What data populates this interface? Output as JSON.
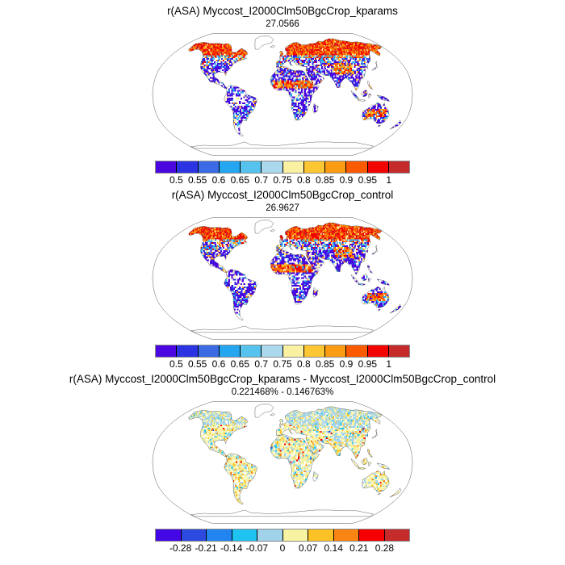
{
  "figure": {
    "background": "#ffffff"
  },
  "panels": [
    {
      "title": "r(ASA) Myccost_I2000Clm50BgcCrop_kparams",
      "subtitle": "27.0566",
      "colorbar": {
        "labels": [
          "0.5",
          "0.55",
          "0.6",
          "0.65",
          "0.7",
          "0.75",
          "0.8",
          "0.85",
          "0.9",
          "0.95",
          "1"
        ],
        "colors": [
          "#4a07e0",
          "#2c33e3",
          "#3a6be5",
          "#25a6f0",
          "#55c3ee",
          "#abd8ec",
          "#faf0a2",
          "#fcc733",
          "#fb9c12",
          "#fa5a00",
          "#f20400",
          "#c62b2b"
        ]
      }
    },
    {
      "title": "r(ASA) Myccost_I2000Clm50BgcCrop_control",
      "subtitle": "26.9627",
      "colorbar": {
        "labels": [
          "0.5",
          "0.55",
          "0.6",
          "0.65",
          "0.7",
          "0.75",
          "0.8",
          "0.85",
          "0.9",
          "0.95",
          "1"
        ],
        "colors": [
          "#4a07e0",
          "#2c33e3",
          "#3a6be5",
          "#25a6f0",
          "#55c3ee",
          "#abd8ec",
          "#faf0a2",
          "#fcc733",
          "#fb9c12",
          "#fa5a00",
          "#f20400",
          "#c62b2b"
        ]
      }
    },
    {
      "title": "r(ASA) Myccost_I2000Clm50BgcCrop_kparams - Myccost_I2000Clm50BgcCrop_control",
      "subtitle": "0.221468% - 0.146763%",
      "colorbar": {
        "labels": [
          "-0.28",
          "-0.21",
          "-0.14",
          "-0.07",
          "0",
          "0.07",
          "0.14",
          "0.21",
          "0.28"
        ],
        "colors": [
          "#4408e6",
          "#2c4ae0",
          "#2285ef",
          "#1ec3f2",
          "#a0d2ea",
          "#f8f3a3",
          "#fcc125",
          "#fa8412",
          "#f70000",
          "#c62b2b"
        ]
      }
    }
  ],
  "chart_data": [
    {
      "type": "heatmap",
      "subtype": "global-land-map",
      "projection": "robinson",
      "title": "r(ASA) Myccost_I2000Clm50BgcCrop_kparams",
      "annotation_value": 27.0566,
      "colorbar_levels": [
        0.5,
        0.55,
        0.6,
        0.65,
        0.7,
        0.75,
        0.8,
        0.85,
        0.9,
        0.95,
        1
      ],
      "palette": [
        "#4a07e0",
        "#2c33e3",
        "#3a6be5",
        "#25a6f0",
        "#55c3ee",
        "#abd8ec",
        "#faf0a2",
        "#fcc733",
        "#fb9c12",
        "#fa5a00",
        "#f20400",
        "#c62b2b"
      ],
      "legend_position": "bottom",
      "grid": false,
      "description": "Correlation r(ASA) on land: 0.85-1 (red/orange) over boreal North America, Scandinavia and northern Eurasia, the Sahel belt, the Tibetan-plateau margin and central Australia; 0.5-0.65 (violet/blue) over most tropical and subtropical land; white gaps (no data) over Amazon and Congo basins, Greenland and Antarctica."
    },
    {
      "type": "heatmap",
      "subtype": "global-land-map",
      "projection": "robinson",
      "title": "r(ASA) Myccost_I2000Clm50BgcCrop_control",
      "annotation_value": 26.9627,
      "colorbar_levels": [
        0.5,
        0.55,
        0.6,
        0.65,
        0.7,
        0.75,
        0.8,
        0.85,
        0.9,
        0.95,
        1
      ],
      "palette": [
        "#4a07e0",
        "#2c33e3",
        "#3a6be5",
        "#25a6f0",
        "#55c3ee",
        "#abd8ec",
        "#faf0a2",
        "#fcc733",
        "#fb9c12",
        "#fa5a00",
        "#f20400",
        "#c62b2b"
      ],
      "legend_position": "bottom",
      "grid": false,
      "description": "Nearly identical spatial pattern to the kparams panel: high correlation across high northern latitudes, Sahel and central Australia; low correlation across tropics and subtropics."
    },
    {
      "type": "heatmap",
      "subtype": "global-land-map-difference",
      "projection": "robinson",
      "title": "r(ASA) Myccost_I2000Clm50BgcCrop_kparams - Myccost_I2000Clm50BgcCrop_control",
      "annotation_value": "0.221468% - 0.146763%",
      "colorbar_levels": [
        -0.28,
        -0.21,
        -0.14,
        -0.07,
        0,
        0.07,
        0.14,
        0.21,
        0.28
      ],
      "palette": [
        "#4408e6",
        "#2c4ae0",
        "#2285ef",
        "#1ec3f2",
        "#a0d2ea",
        "#f8f3a3",
        "#fcc125",
        "#fa8412",
        "#f70000",
        "#c62b2b"
      ],
      "legend_position": "bottom",
      "grid": false,
      "description": "Difference map dominated by near-zero values: pale blue (-0.07 to 0) across high northern latitudes and the Tibetan plateau, pale yellow (0 to 0.07) elsewhere, with scattered gold/orange/red speckles (notably over India) and rare blue dots."
    }
  ]
}
